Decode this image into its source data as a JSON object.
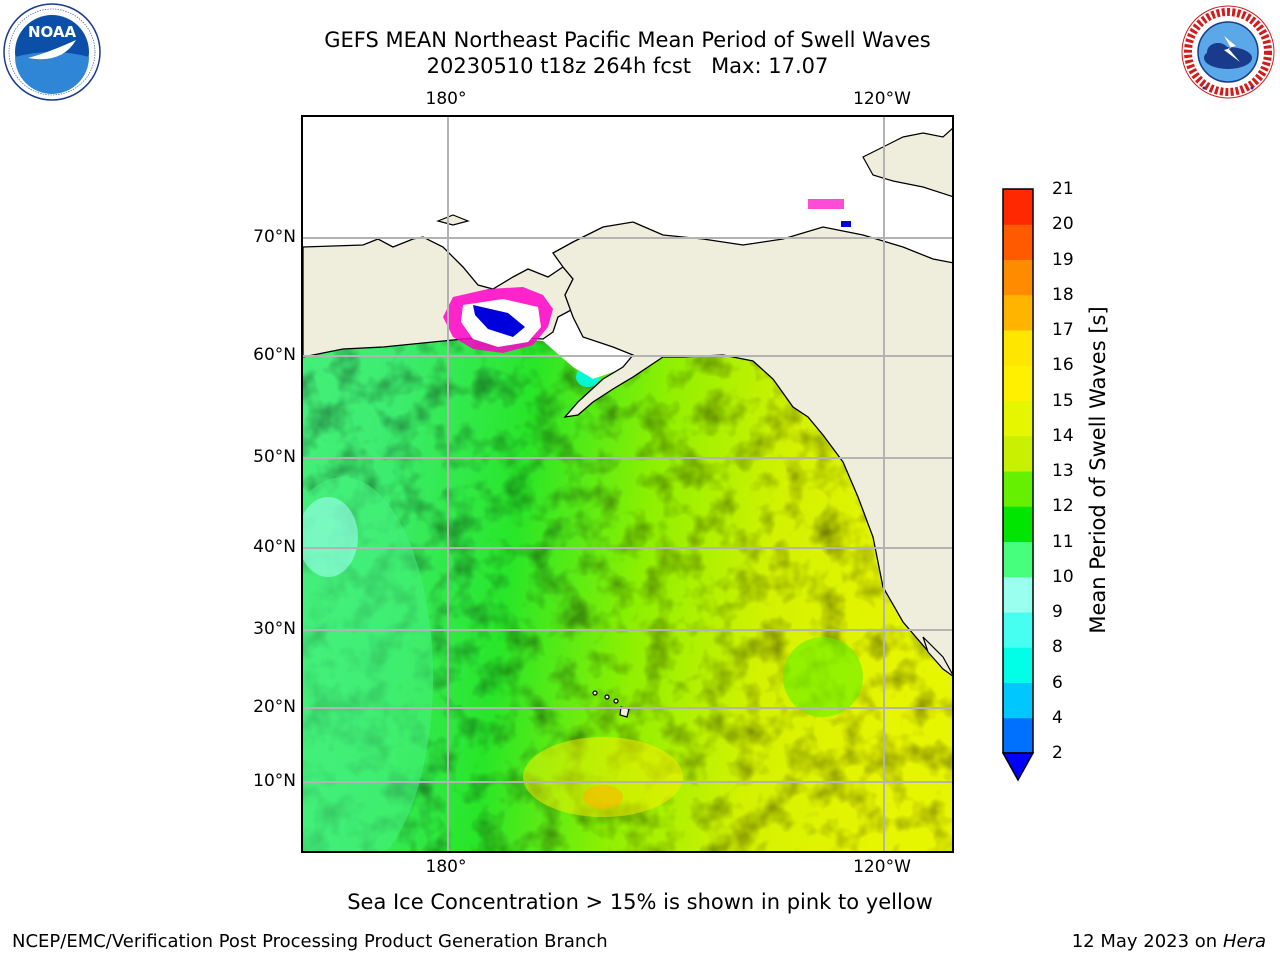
{
  "header": {
    "title_line1": "GEFS MEAN Northeast Pacific Mean Period of Swell Waves",
    "title_line2": "20230510 t18z 264h fcst   Max: 17.07"
  },
  "logos": {
    "noaa_text": "NOAA",
    "noaa_ring_text": "NATIONAL OCEANIC AND ATMOSPHERIC ADMINISTRATION · U.S. DEPARTMENT OF COMMERCE",
    "nws_ring_text": "NATIONAL WEATHER SERVICE"
  },
  "map": {
    "lon_labels_top": [
      "180°",
      "120°W"
    ],
    "lon_labels_bottom": [
      "180°",
      "120°W"
    ],
    "lat_labels": [
      "70°N",
      "60°N",
      "50°N",
      "40°N",
      "30°N",
      "20°N",
      "10°N"
    ],
    "colors": {
      "land": "#efeddc",
      "ocean_base": "#82f000",
      "gridline": "#b3b3b3"
    }
  },
  "colorbar": {
    "label": "Mean Period of Swell Waves [s]",
    "ticks": [
      "2",
      "4",
      "6",
      "8",
      "9",
      "10",
      "11",
      "12",
      "13",
      "14",
      "15",
      "16",
      "17",
      "18",
      "19",
      "20",
      "21"
    ],
    "colors": [
      "#0070ff",
      "#00c8ff",
      "#00ffe6",
      "#46fff0",
      "#9bfff0",
      "#46ff7d",
      "#00e600",
      "#64f000",
      "#c8f000",
      "#e6f500",
      "#fff000",
      "#ffe600",
      "#ffb400",
      "#ff8c00",
      "#ff5a00",
      "#ff2800",
      "#ff0000"
    ],
    "extend_color": "#0000ff"
  },
  "footer": {
    "note": "Sea Ice Concentration > 15% is shown in pink to yellow",
    "credit_left": "NCEP/EMC/Verification Post Processing Product Generation Branch",
    "date": "12 May 2023 on",
    "host": "Hera"
  }
}
